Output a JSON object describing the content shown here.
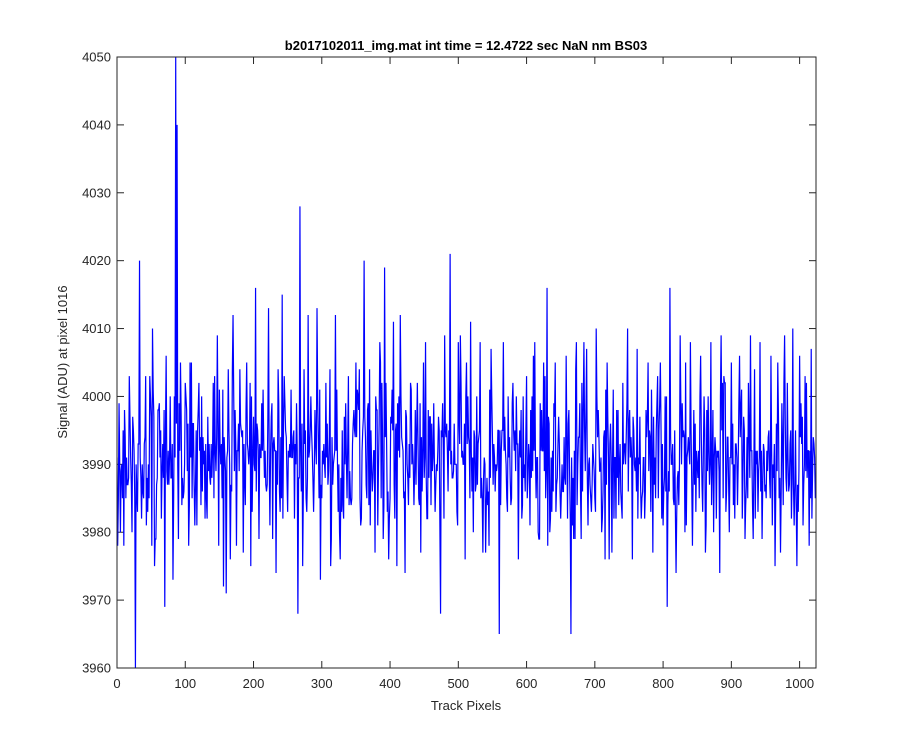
{
  "chart_data": {
    "type": "line",
    "title": "b2017102011_img.mat int time = 12.4722 sec  NaN nm BS03",
    "xlabel": "Track Pixels",
    "ylabel": "Signal (ADU) at pixel 1016",
    "xlim": [
      0,
      1024
    ],
    "ylim": [
      3960,
      4050
    ],
    "xticks": [
      0,
      100,
      200,
      300,
      400,
      500,
      600,
      700,
      800,
      900,
      1000
    ],
    "yticks": [
      3960,
      3970,
      3980,
      3990,
      4000,
      4010,
      4020,
      4030,
      4040,
      4050
    ],
    "grid": false,
    "legend": "none",
    "series": [
      {
        "color": "#0000ff",
        "sample_count": 1024,
        "mean": 3991,
        "noise_std": 6,
        "seed": 20171020,
        "values_at_x": {
          "3": 3999,
          "5": 3980,
          "8": 3985,
          "12": 3994,
          "18": 4003,
          "22": 3980,
          "27": 3960,
          "30": 3983,
          "33": 4020,
          "36": 3982,
          "42": 4003,
          "45": 3983,
          "48": 4003,
          "52": 4010,
          "55": 3975,
          "60": 3998,
          "65": 3982,
          "70": 3969,
          "75": 3992,
          "78": 4000,
          "82": 3973,
          "86": 4050,
          "88": 4040,
          "90": 3979,
          "93": 4005,
          "97": 3985,
          "100": 4002,
          "110": 3985,
          "118": 3995,
          "125": 3986,
          "132": 3982,
          "140": 3992,
          "147": 4009,
          "153": 3993,
          "156": 3972,
          "160": 3971,
          "164": 3995,
          "170": 4012,
          "175": 3978,
          "180": 4004,
          "185": 3977,
          "190": 4005,
          "196": 3975,
          "203": 4016,
          "208": 3979,
          "215": 3993,
          "222": 4013,
          "228": 3979,
          "235": 3987,
          "242": 4015,
          "250": 3983,
          "258": 3994,
          "265": 3968,
          "268": 4028,
          "272": 3975,
          "280": 4012,
          "288": 3983,
          "293": 4013,
          "298": 3973,
          "306": 4002,
          "313": 3975,
          "320": 4012,
          "327": 3976,
          "335": 3999,
          "342": 3985,
          "350": 4005,
          "355": 4004,
          "358": 3982,
          "362": 4020,
          "366": 3985,
          "370": 4004,
          "378": 3977,
          "385": 4008,
          "392": 4019,
          "398": 3976,
          "405": 4011,
          "410": 3975,
          "415": 4012,
          "422": 3974,
          "430": 4002,
          "438": 3987,
          "445": 3977,
          "452": 4008,
          "460": 3984,
          "468": 3990,
          "474": 3968,
          "480": 4009,
          "488": 4021,
          "495": 3990,
          "503": 4009,
          "510": 3976,
          "518": 4011,
          "525": 3986,
          "532": 4008,
          "540": 3977,
          "548": 4007,
          "555": 3990,
          "560": 3965,
          "566": 4008,
          "572": 3983,
          "580": 4002,
          "588": 3976,
          "595": 4000,
          "602": 3988,
          "610": 4006,
          "618": 3979,
          "625": 4005,
          "630": 4016,
          "635": 3982,
          "642": 4005,
          "650": 3982,
          "658": 4006,
          "665": 3965,
          "672": 4004,
          "680": 3979,
          "688": 4007,
          "695": 3983,
          "702": 4010,
          "710": 3980,
          "718": 4005,
          "725": 3977,
          "732": 3998,
          "740": 3982,
          "748": 4010,
          "755": 3976,
          "762": 4007,
          "770": 3986,
          "778": 4005,
          "785": 3977,
          "792": 4003,
          "800": 3981,
          "806": 3969,
          "810": 4016,
          "818": 3983,
          "825": 4009,
          "832": 3980,
          "840": 4008,
          "848": 3983,
          "855": 4006,
          "862": 3977,
          "870": 4008,
          "878": 3982,
          "885": 4009,
          "892": 3983,
          "900": 4005,
          "905": 3982,
          "912": 4006,
          "920": 3979,
          "928": 4009,
          "935": 3982,
          "942": 4008,
          "950": 3987,
          "958": 4006,
          "964": 3975,
          "968": 4005,
          "972": 3977,
          "978": 4009,
          "984": 3986,
          "990": 4010,
          "996": 3975,
          "1000": 4006,
          "1005": 3981,
          "1010": 4002,
          "1014": 3978,
          "1017": 4007,
          "1021": 3993,
          "1023": 3985
        }
      }
    ]
  }
}
